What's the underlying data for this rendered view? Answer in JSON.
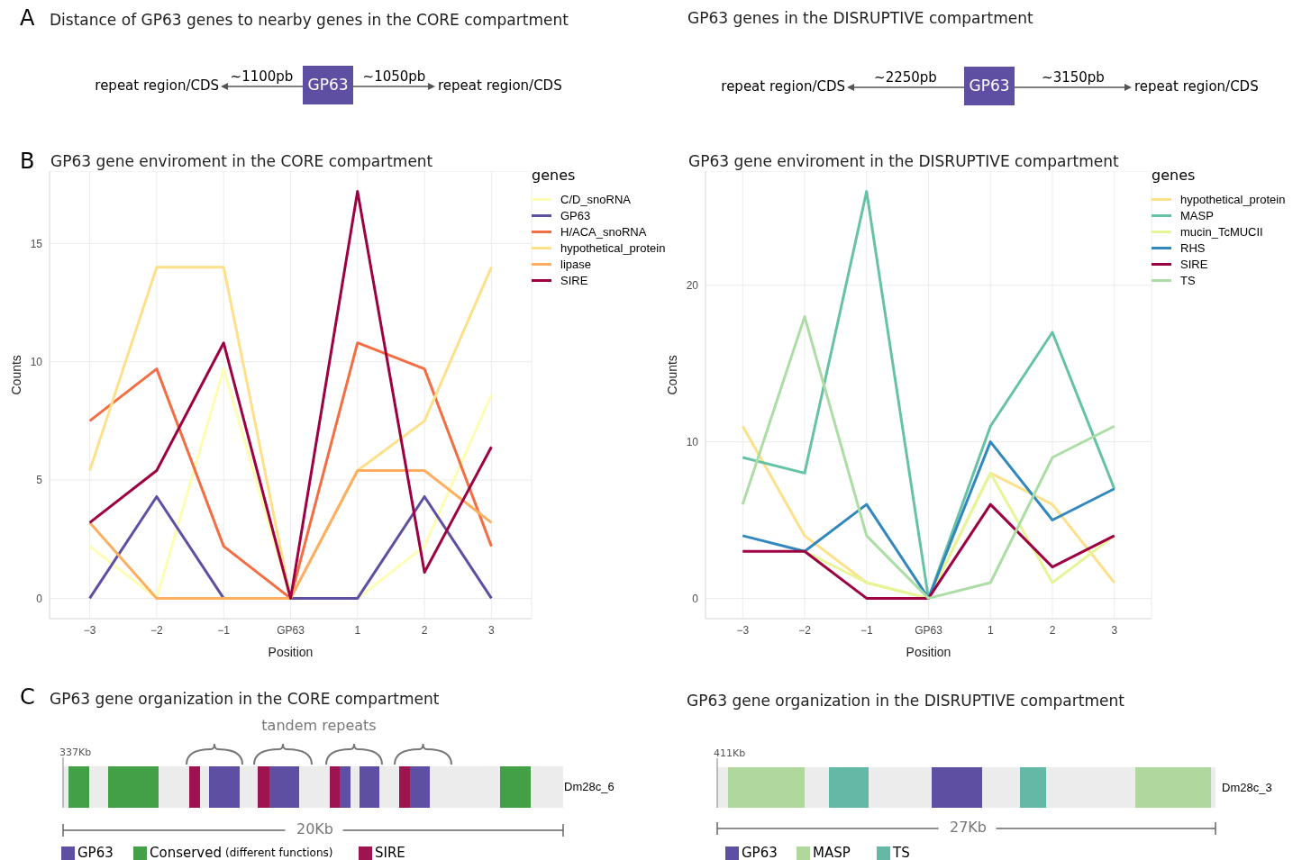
{
  "chart_data": [
    {
      "type": "other",
      "title": "Distance of GP63 genes to nearby genes in the CORE compartment",
      "annotations": [
        "A",
        "repeat region/CDS",
        "~1100pb",
        "GP63",
        "~1050pb",
        "repeat region/CDS"
      ]
    },
    {
      "type": "other",
      "title": "GP63 genes in the DISRUPTIVE compartment",
      "annotations": [
        "repeat region/CDS",
        "~2250pb",
        "GP63",
        "~3150pb",
        "repeat region/CDS"
      ]
    },
    {
      "type": "line",
      "title": "GP63 gene enviroment in the CORE compartment",
      "annotations": [
        "B"
      ],
      "xlabel": "Position",
      "ylabel": "Counts",
      "legend_title": "genes",
      "legend": "right",
      "grid": true,
      "categories": [
        "−3",
        "−2",
        "−1",
        "GP63",
        "1",
        "2",
        "3"
      ],
      "ylim": [
        -0.86,
        18.06
      ],
      "yticks": [
        0,
        5,
        10,
        15
      ],
      "series": [
        {
          "name": "C/D_snoRNA",
          "color": "#fefdb4",
          "values": [
            2.2,
            0,
            9.7,
            0,
            0,
            2.2,
            8.6
          ]
        },
        {
          "name": "GP63",
          "color": "#5e4fa2",
          "values": [
            0,
            4.3,
            0,
            0,
            0,
            4.3,
            0
          ]
        },
        {
          "name": "H/ACA_snoRNA",
          "color": "#f46d43",
          "values": [
            7.5,
            9.7,
            2.2,
            0,
            10.8,
            9.7,
            2.2
          ]
        },
        {
          "name": "hypothetical_protein",
          "color": "#fee08b",
          "values": [
            5.4,
            14,
            14,
            0,
            5.4,
            7.5,
            14
          ]
        },
        {
          "name": "lipase",
          "color": "#fdae61",
          "values": [
            3.2,
            0,
            0,
            0,
            5.4,
            5.4,
            3.2
          ]
        },
        {
          "name": "SIRE",
          "color": "#9e0142",
          "values": [
            3.2,
            5.4,
            10.8,
            0,
            17.2,
            1.1,
            6.4
          ]
        }
      ]
    },
    {
      "type": "line",
      "title": "GP63 gene enviroment in the DISRUPTIVE compartment",
      "xlabel": "Position",
      "ylabel": "Counts",
      "legend_title": "genes",
      "legend": "right",
      "grid": true,
      "categories": [
        "−3",
        "−2",
        "−1",
        "GP63",
        "1",
        "2",
        "3"
      ],
      "ylim": [
        -1.3,
        27.3
      ],
      "yticks": [
        0,
        10,
        20
      ],
      "series": [
        {
          "name": "hypothetical_protein",
          "color": "#fee08b",
          "values": [
            11,
            4,
            1,
            0,
            8,
            6,
            1
          ]
        },
        {
          "name": "MASP",
          "color": "#66c2a5",
          "values": [
            9,
            8,
            26,
            0,
            11,
            17,
            7
          ]
        },
        {
          "name": "mucin_TcMUCII",
          "color": "#e6f598",
          "values": [
            null,
            3,
            1,
            0,
            8,
            1,
            4
          ]
        },
        {
          "name": "RHS",
          "color": "#3288bd",
          "values": [
            4,
            3,
            6,
            0,
            10,
            5,
            7
          ]
        },
        {
          "name": "SIRE",
          "color": "#9e0142",
          "values": [
            3,
            3,
            0,
            0,
            6,
            2,
            4
          ]
        },
        {
          "name": "TS",
          "color": "#abdda4",
          "values": [
            6,
            18,
            4,
            0,
            1,
            9,
            11
          ]
        }
      ]
    },
    {
      "type": "other",
      "title": "GP63 gene organization in the CORE compartment",
      "annotations": [
        "C",
        "tandem repeats",
        "337Kb",
        "Dm28c_6",
        "20Kb",
        "GP63",
        "Conserved",
        "(different functions)",
        "SIRE"
      ]
    },
    {
      "type": "other",
      "title": "GP63 gene organization in the DISRUPTIVE compartment",
      "annotations": [
        "411Kb",
        "Dm28c_3",
        "27Kb",
        "GP63",
        "MASP",
        "TS"
      ]
    }
  ]
}
